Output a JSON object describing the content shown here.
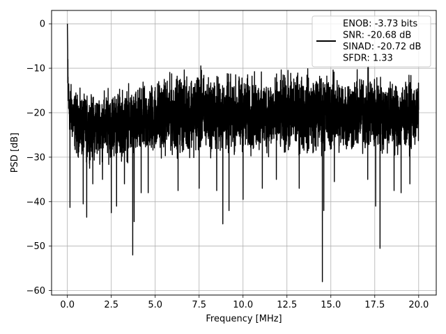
{
  "chart_data": {
    "type": "line",
    "title": "",
    "xlabel": "Frequency [MHz]",
    "ylabel": "PSD [dB]",
    "xlim": [
      -0.9,
      21.0
    ],
    "ylim": [
      -61.0,
      3.0
    ],
    "xticks": [
      0.0,
      2.5,
      5.0,
      7.5,
      10.0,
      12.5,
      15.0,
      17.5,
      20.0
    ],
    "xtick_labels": [
      "0.0",
      "2.5",
      "5.0",
      "7.5",
      "10.0",
      "12.5",
      "15.0",
      "17.5",
      "20.0"
    ],
    "yticks": [
      0,
      -10,
      -20,
      -30,
      -40,
      -50,
      -60
    ],
    "ytick_labels": [
      "0",
      "−10",
      "−20",
      "−30",
      "−40",
      "−50",
      "−60"
    ],
    "grid": true,
    "legend": {
      "placement": "top-right",
      "entries": [
        "ENOB: -3.73 bits",
        "SNR: -20.68 dB",
        "SINAD: -20.72 dB",
        "SFDR: 1.33"
      ]
    },
    "series": [
      {
        "color": "#000000",
        "description": "Dense noise-like PSD trace; values oscillate rapidly between the listed envelope bounds, with a single peak near 0 dB at DC and isolated deep dips.",
        "x_range": [
          0.0,
          20.0
        ],
        "peak": {
          "x": 0.0,
          "y": 0.0
        },
        "upper_envelope": {
          "x": [
            0.0,
            0.1,
            0.5,
            1.0,
            2.0,
            3.0,
            4.0,
            5.0,
            6.0,
            7.0,
            7.5,
            8.0,
            9.0,
            10.0,
            11.0,
            12.0,
            13.0,
            14.0,
            15.0,
            16.0,
            17.0,
            18.0,
            19.0,
            20.0
          ],
          "y": [
            0.0,
            -11.0,
            -13.0,
            -14.0,
            -13.0,
            -12.0,
            -12.0,
            -10.0,
            -9.0,
            -8.0,
            -7.0,
            -9.0,
            -9.0,
            -9.0,
            -9.0,
            -9.0,
            -8.0,
            -8.0,
            -8.0,
            -9.0,
            -8.0,
            -9.0,
            -10.0,
            -11.0
          ]
        },
        "lower_envelope": {
          "x": [
            0.0,
            0.5,
            1.0,
            2.0,
            3.0,
            4.0,
            5.0,
            6.0,
            7.0,
            8.0,
            9.0,
            10.0,
            11.0,
            12.0,
            13.0,
            14.0,
            15.0,
            16.0,
            17.0,
            18.0,
            19.0,
            20.0
          ],
          "y": [
            -25.0,
            -32.0,
            -33.0,
            -33.0,
            -33.0,
            -33.0,
            -32.0,
            -32.0,
            -32.0,
            -32.0,
            -32.0,
            -32.0,
            -32.0,
            -32.0,
            -32.0,
            -32.0,
            -32.0,
            -32.0,
            -32.0,
            -32.0,
            -32.0,
            -30.0
          ]
        },
        "dips": [
          {
            "x": 0.15,
            "y": -41.3
          },
          {
            "x": 0.9,
            "y": -40.5
          },
          {
            "x": 1.1,
            "y": -43.5
          },
          {
            "x": 1.45,
            "y": -36.0
          },
          {
            "x": 2.0,
            "y": -35.0
          },
          {
            "x": 2.5,
            "y": -42.5
          },
          {
            "x": 2.8,
            "y": -41.0
          },
          {
            "x": 3.25,
            "y": -36.0
          },
          {
            "x": 3.72,
            "y": -52.0
          },
          {
            "x": 3.8,
            "y": -44.5
          },
          {
            "x": 4.2,
            "y": -38.0
          },
          {
            "x": 4.6,
            "y": -38.0
          },
          {
            "x": 6.3,
            "y": -37.5
          },
          {
            "x": 7.5,
            "y": -37.0
          },
          {
            "x": 8.5,
            "y": -37.5
          },
          {
            "x": 8.85,
            "y": -45.0
          },
          {
            "x": 9.2,
            "y": -42.0
          },
          {
            "x": 10.0,
            "y": -39.5
          },
          {
            "x": 11.1,
            "y": -37.0
          },
          {
            "x": 11.9,
            "y": -35.0
          },
          {
            "x": 13.2,
            "y": -37.0
          },
          {
            "x": 14.6,
            "y": -42.0
          },
          {
            "x": 15.2,
            "y": -35.5
          },
          {
            "x": 14.52,
            "y": -58.0
          },
          {
            "x": 17.1,
            "y": -35.0
          },
          {
            "x": 17.55,
            "y": -41.0
          },
          {
            "x": 17.8,
            "y": -50.5
          },
          {
            "x": 18.6,
            "y": -37.5
          },
          {
            "x": 19.0,
            "y": -38.0
          },
          {
            "x": 19.5,
            "y": -36.0
          }
        ]
      }
    ]
  }
}
